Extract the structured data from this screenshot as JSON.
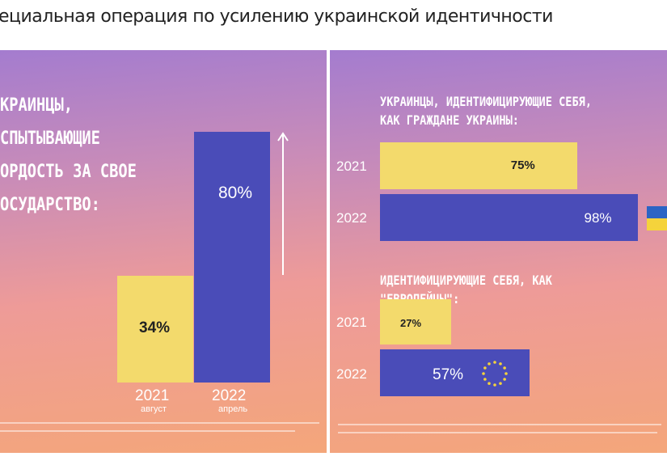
{
  "headline": "ециальная операция по усилению украинской идентичности",
  "colors": {
    "year_2021": "#f3da6c",
    "year_2022": "#4a4cb8",
    "gradient_top": "#a47ccf",
    "gradient_bottom": "#f4a67a"
  },
  "chart_data": [
    {
      "type": "bar",
      "orientation": "vertical",
      "title_lines": [
        "КРАИНЦЫ,",
        "СПЫТЫВАЮЩИЕ",
        "ОРДОСТЬ ЗА СВОЕ",
        "ОСУДАРСТВО:"
      ],
      "categories": [
        "2021",
        "2022"
      ],
      "sublabels": [
        "август",
        "апрель"
      ],
      "values": [
        34,
        80
      ],
      "value_labels": [
        "34%",
        "80%"
      ],
      "ylim": [
        0,
        100
      ],
      "annotation": "up-arrow-icon"
    },
    {
      "type": "bar",
      "orientation": "horizontal",
      "title_lines": [
        "УКРАИНЦЫ, ИДЕНТИФИЦИРУЮЩИЕ СЕБЯ,",
        "КАК ГРАЖДАНЕ УКРАИНЫ:"
      ],
      "categories": [
        "2021",
        "2022"
      ],
      "values": [
        75,
        98
      ],
      "value_labels": [
        "75%",
        "98%"
      ],
      "xlim": [
        0,
        100
      ],
      "annotation": "ukraine-flag-icon"
    },
    {
      "type": "bar",
      "orientation": "horizontal",
      "title_lines": [
        "ИДЕНТИФИЦИРУЮЩИЕ СЕБЯ, КАК \"ЕВРОПЕЙЦЫ\":"
      ],
      "categories": [
        "2021",
        "2022"
      ],
      "values": [
        27,
        57
      ],
      "value_labels": [
        "27%",
        "57%"
      ],
      "xlim": [
        0,
        100
      ],
      "annotation": "eu-stars-icon"
    }
  ]
}
